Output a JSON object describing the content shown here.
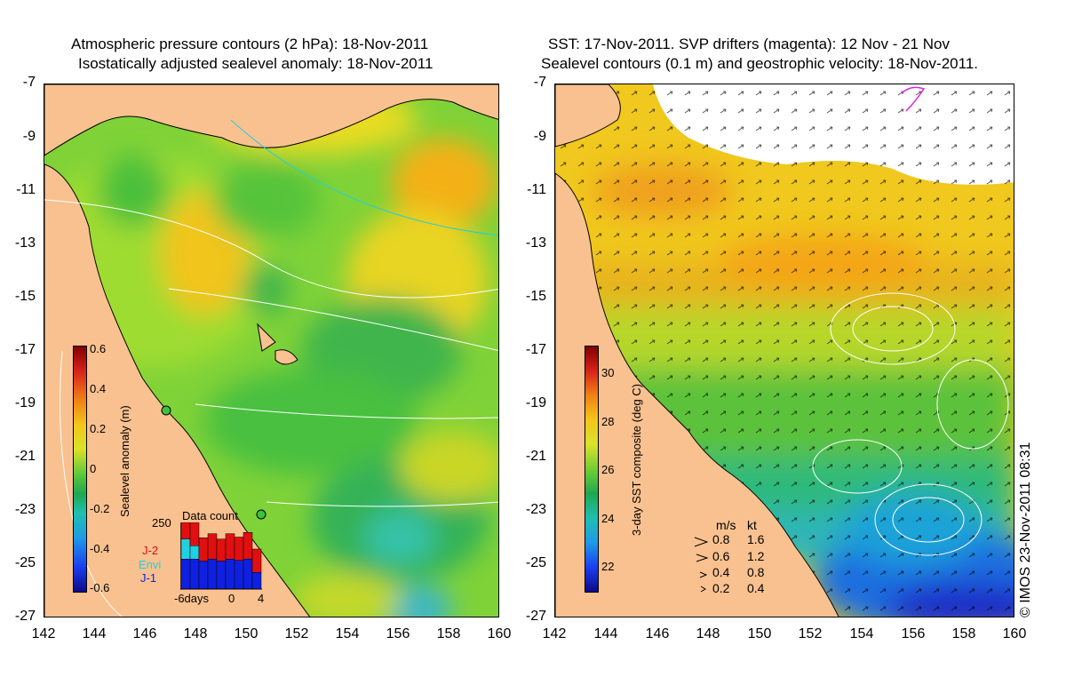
{
  "left_panel": {
    "title_line1": "Atmospheric pressure contours (2 hPa): 18-Nov-2011",
    "title_line2": "Isostatically adjusted sealevel anomaly: 18-Nov-2011",
    "colorbar": {
      "label": "Sealevel anomaly (m)",
      "ticks": [
        "0.6",
        "0.4",
        "0.2",
        "0",
        "-0.2",
        "-0.4",
        "-0.6"
      ]
    },
    "data_count": {
      "title": "Data count",
      "ymax": "250",
      "x_labels": [
        "-6days",
        "0",
        "4"
      ],
      "missions": [
        {
          "name": "J-2",
          "color": "#e01010"
        },
        {
          "name": "Envi",
          "color": "#20d0e0"
        },
        {
          "name": "J-1",
          "color": "#1020e0"
        }
      ],
      "bars": [
        {
          "j1": 0.45,
          "envi": 0.3,
          "j2": 0.25
        },
        {
          "j1": 0.45,
          "envi": 0.2,
          "j2": 0.35
        },
        {
          "j1": 0.42,
          "envi": 0.0,
          "j2": 0.35
        },
        {
          "j1": 0.45,
          "envi": 0.0,
          "j2": 0.38
        },
        {
          "j1": 0.42,
          "envi": 0.0,
          "j2": 0.33
        },
        {
          "j1": 0.45,
          "envi": 0.0,
          "j2": 0.38
        },
        {
          "j1": 0.43,
          "envi": 0.0,
          "j2": 0.35
        },
        {
          "j1": 0.45,
          "envi": 0.0,
          "j2": 0.4
        },
        {
          "j1": 0.25,
          "envi": 0.0,
          "j2": 0.35
        }
      ]
    }
  },
  "right_panel": {
    "title_line1": "SST: 17-Nov-2011. SVP drifters (magenta): 12 Nov - 21 Nov",
    "title_line2": "Sealevel contours (0.1 m) and geostrophic velocity: 18-Nov-2011.",
    "colorbar": {
      "label": "3-day SST composite (deg C)",
      "ticks": [
        "30",
        "28",
        "26",
        "24",
        "22"
      ]
    },
    "velocity_legend": {
      "header_ms": "m/s",
      "header_kt": "kt",
      "rows": [
        {
          "ms": "0.8",
          "kt": "1.6"
        },
        {
          "ms": "0.6",
          "kt": "1.2"
        },
        {
          "ms": "0.4",
          "kt": "0.8"
        },
        {
          "ms": "0.2",
          "kt": "0.4"
        }
      ]
    },
    "credit": "© IMOS 23-Nov-2011 08:31"
  },
  "axes": {
    "y_ticks": [
      "-7",
      "-9",
      "-11",
      "-13",
      "-15",
      "-17",
      "-19",
      "-21",
      "-23",
      "-25",
      "-27"
    ],
    "x_ticks": [
      "142",
      "144",
      "146",
      "148",
      "150",
      "152",
      "154",
      "156",
      "158",
      "160"
    ]
  },
  "colors": {
    "land": "#f9c18f",
    "sea_green": "#3ec23a",
    "sea_lightgreen": "#9ad82e",
    "sea_yellow": "#f0d81c",
    "sea_orange": "#f5a10f",
    "sea_cyan": "#31c7c0",
    "sea_blue": "#1e78d8"
  }
}
